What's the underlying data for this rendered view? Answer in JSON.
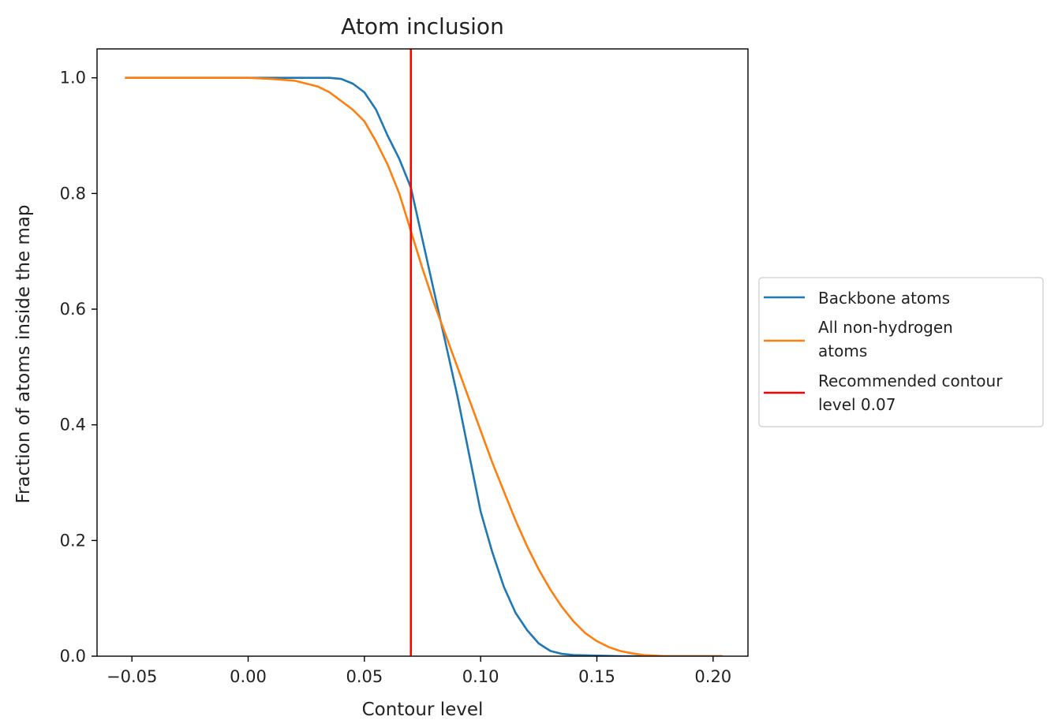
{
  "chart_data": {
    "type": "line",
    "title": "Atom inclusion",
    "xlabel": "Contour level",
    "ylabel": "Fraction of atoms inside the map",
    "xlim": [
      -0.065,
      0.215
    ],
    "ylim": [
      0.0,
      1.05
    ],
    "xticks": [
      -0.05,
      0.0,
      0.05,
      0.1,
      0.15,
      0.2
    ],
    "xtick_labels": [
      "−0.05",
      "0.00",
      "0.05",
      "0.10",
      "0.15",
      "0.20"
    ],
    "yticks": [
      0.0,
      0.2,
      0.4,
      0.6,
      0.8,
      1.0
    ],
    "ytick_labels": [
      "0.0",
      "0.2",
      "0.4",
      "0.6",
      "0.8",
      "1.0"
    ],
    "grid": false,
    "legend_position": "outside-right",
    "series": [
      {
        "name": "Backbone atoms",
        "color": "#1f77b4",
        "x": [
          -0.053,
          -0.03,
          -0.01,
          0.0,
          0.02,
          0.03,
          0.035,
          0.04,
          0.045,
          0.05,
          0.055,
          0.06,
          0.065,
          0.07,
          0.075,
          0.08,
          0.085,
          0.09,
          0.095,
          0.1,
          0.105,
          0.11,
          0.115,
          0.12,
          0.125,
          0.13,
          0.135,
          0.14,
          0.15,
          0.16,
          0.18,
          0.204
        ],
        "y": [
          1.0,
          1.0,
          1.0,
          1.0,
          1.0,
          1.0,
          1.0,
          0.998,
          0.99,
          0.975,
          0.945,
          0.9,
          0.86,
          0.81,
          0.72,
          0.63,
          0.54,
          0.45,
          0.35,
          0.25,
          0.18,
          0.12,
          0.075,
          0.045,
          0.022,
          0.009,
          0.004,
          0.002,
          0.001,
          0.0,
          0.0,
          0.0
        ]
      },
      {
        "name": "All non-hydrogen\n atoms",
        "color": "#ff7f0e",
        "x": [
          -0.053,
          -0.03,
          -0.01,
          0.0,
          0.01,
          0.02,
          0.03,
          0.035,
          0.04,
          0.045,
          0.05,
          0.055,
          0.06,
          0.065,
          0.07,
          0.075,
          0.08,
          0.085,
          0.09,
          0.095,
          0.1,
          0.105,
          0.11,
          0.115,
          0.12,
          0.125,
          0.13,
          0.135,
          0.14,
          0.145,
          0.15,
          0.155,
          0.16,
          0.165,
          0.17,
          0.175,
          0.18,
          0.204
        ],
        "y": [
          1.0,
          1.0,
          1.0,
          1.0,
          0.998,
          0.995,
          0.985,
          0.975,
          0.96,
          0.945,
          0.925,
          0.89,
          0.85,
          0.8,
          0.735,
          0.67,
          0.61,
          0.555,
          0.5,
          0.445,
          0.39,
          0.335,
          0.285,
          0.235,
          0.19,
          0.15,
          0.115,
          0.085,
          0.06,
          0.04,
          0.026,
          0.016,
          0.009,
          0.005,
          0.002,
          0.001,
          0.0,
          0.0
        ]
      },
      {
        "name": "Recommended contour\n level 0.07",
        "color": "#ff0000",
        "type": "vline",
        "x": [
          0.07
        ]
      }
    ]
  }
}
